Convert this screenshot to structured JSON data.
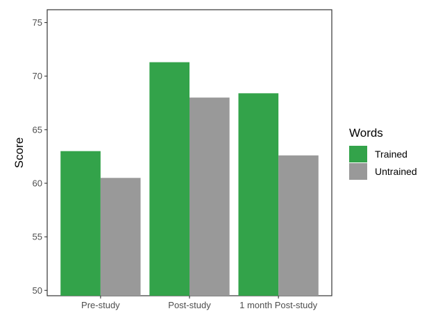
{
  "chart_data": {
    "type": "bar",
    "title": "",
    "xlabel": "",
    "ylabel": "Score",
    "categories": [
      "Pre-study",
      "Post-study",
      "1 month Post-study"
    ],
    "series": [
      {
        "name": "Trained",
        "color": "#33a34a",
        "values": [
          63.0,
          71.3,
          68.4
        ]
      },
      {
        "name": "Untrained",
        "color": "#999999",
        "values": [
          60.5,
          68.0,
          62.6
        ]
      }
    ],
    "ylim": [
      49.5,
      76.2
    ],
    "yticks": [
      50,
      55,
      60,
      65,
      70,
      75
    ],
    "grid": false,
    "legend": {
      "title": "Words",
      "position": "right"
    }
  }
}
